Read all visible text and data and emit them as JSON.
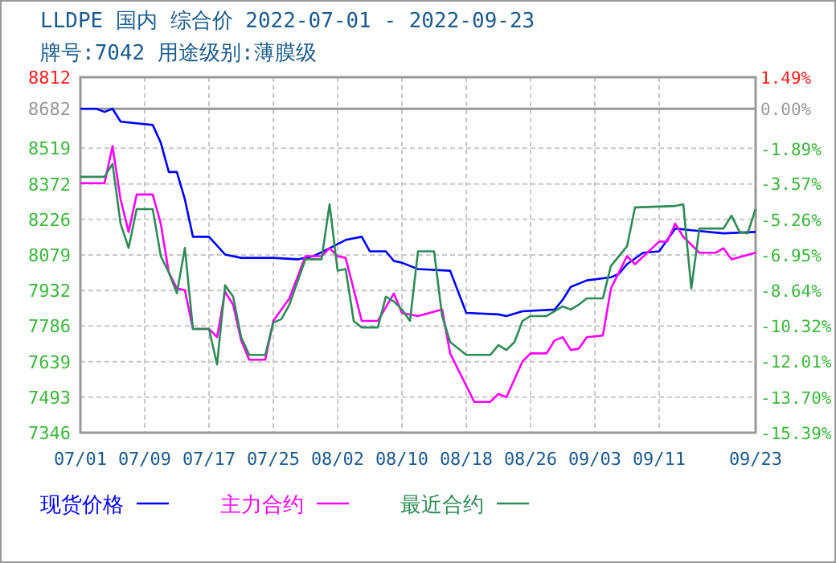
{
  "chart_data": {
    "type": "line",
    "title": "LLDPE 国内 综合价 2022-07-01 - 2022-09-23",
    "subtitle": "牌号:7042 用途级别:薄膜级",
    "xlim": [
      "2022-07-01",
      "2022-09-23"
    ],
    "xticks": [
      {
        "value": "2022-07-01",
        "label": "07/01"
      },
      {
        "value": "2022-07-09",
        "label": "07/09"
      },
      {
        "value": "2022-07-17",
        "label": "07/17"
      },
      {
        "value": "2022-07-25",
        "label": "07/25"
      },
      {
        "value": "2022-08-02",
        "label": "08/02"
      },
      {
        "value": "2022-08-10",
        "label": "08/10"
      },
      {
        "value": "2022-08-18",
        "label": "08/18"
      },
      {
        "value": "2022-08-26",
        "label": "08/26"
      },
      {
        "value": "2022-09-03",
        "label": "09/03"
      },
      {
        "value": "2022-09-11",
        "label": "09/11"
      },
      {
        "value": "2022-09-23",
        "label": "09/23"
      }
    ],
    "ylim": [
      7346,
      8812
    ],
    "yticks": [
      7346,
      7493,
      7639,
      7786,
      7932,
      8079,
      8226,
      8372,
      8519,
      8682,
      8812
    ],
    "y2lim": [
      -15.39,
      1.49
    ],
    "y2ticks": [
      {
        "value": -15.39,
        "label": "-15.39%"
      },
      {
        "value": -13.7,
        "label": "-13.70%"
      },
      {
        "value": -12.01,
        "label": "-12.01%"
      },
      {
        "value": -10.32,
        "label": "-10.32%"
      },
      {
        "value": -8.64,
        "label": "-8.64%"
      },
      {
        "value": -6.95,
        "label": "-6.95%"
      },
      {
        "value": -5.26,
        "label": "-5.26%"
      },
      {
        "value": -3.57,
        "label": "-3.57%"
      },
      {
        "value": -1.89,
        "label": "-1.89%"
      },
      {
        "value": 0,
        "label": "0.00%"
      },
      {
        "value": 1.49,
        "label": "1.49%"
      }
    ],
    "ref_lines": [
      {
        "axis": "y",
        "value": 8682,
        "color": "#999999"
      }
    ],
    "grid": true,
    "legend": "bottom",
    "line_style": "solid",
    "series": [
      {
        "name": "现货价格",
        "color": "#0000ff",
        "x": [
          "2022-07-01",
          "2022-07-03",
          "2022-07-04",
          "2022-07-05",
          "2022-07-06",
          "2022-07-10",
          "2022-07-11",
          "2022-07-12",
          "2022-07-13",
          "2022-07-14",
          "2022-07-15",
          "2022-07-17",
          "2022-07-19",
          "2022-07-21",
          "2022-07-25",
          "2022-07-28",
          "2022-07-30",
          "2022-08-01",
          "2022-08-03",
          "2022-08-05",
          "2022-08-06",
          "2022-08-08",
          "2022-08-09",
          "2022-08-10",
          "2022-08-12",
          "2022-08-16",
          "2022-08-18",
          "2022-08-22",
          "2022-08-23",
          "2022-08-25",
          "2022-08-29",
          "2022-08-30",
          "2022-08-31",
          "2022-09-02",
          "2022-09-05",
          "2022-09-06",
          "2022-09-07",
          "2022-09-09",
          "2022-09-11",
          "2022-09-13",
          "2022-09-15",
          "2022-09-19",
          "2022-09-23"
        ],
        "values": [
          8682,
          8682,
          8669,
          8682,
          8629,
          8615,
          8542,
          8421,
          8421,
          8308,
          8154,
          8154,
          8081,
          8067,
          8067,
          8061,
          8074,
          8107,
          8141,
          8154,
          8094,
          8094,
          8054,
          8047,
          8021,
          8014,
          7840,
          7834,
          7827,
          7847,
          7854,
          7894,
          7947,
          7974,
          7987,
          8001,
          8041,
          8088,
          8094,
          8188,
          8181,
          8168,
          8174
        ]
      },
      {
        "name": "主力合约",
        "color": "#ff00ff",
        "x": [
          "2022-07-01",
          "2022-07-04",
          "2022-07-05",
          "2022-07-06",
          "2022-07-07",
          "2022-07-08",
          "2022-07-10",
          "2022-07-11",
          "2022-07-12",
          "2022-07-13",
          "2022-07-14",
          "2022-07-15",
          "2022-07-17",
          "2022-07-18",
          "2022-07-19",
          "2022-07-20",
          "2022-07-21",
          "2022-07-22",
          "2022-07-24",
          "2022-07-25",
          "2022-07-27",
          "2022-07-29",
          "2022-07-31",
          "2022-08-01",
          "2022-08-02",
          "2022-08-03",
          "2022-08-05",
          "2022-08-07",
          "2022-08-09",
          "2022-08-10",
          "2022-08-12",
          "2022-08-15",
          "2022-08-16",
          "2022-08-19",
          "2022-08-21",
          "2022-08-22",
          "2022-08-23",
          "2022-08-25",
          "2022-08-26",
          "2022-08-28",
          "2022-08-29",
          "2022-08-30",
          "2022-08-31",
          "2022-09-01",
          "2022-09-02",
          "2022-09-04",
          "2022-09-05",
          "2022-09-06",
          "2022-09-07",
          "2022-09-08",
          "2022-09-11",
          "2022-09-12",
          "2022-09-13",
          "2022-09-14",
          "2022-09-16",
          "2022-09-18",
          "2022-09-19",
          "2022-09-20",
          "2022-09-23"
        ],
        "values": [
          8375,
          8375,
          8528,
          8308,
          8174,
          8328,
          8328,
          8208,
          8007,
          7941,
          7934,
          7774,
          7774,
          7740,
          7927,
          7874,
          7727,
          7647,
          7647,
          7807,
          7900,
          8074,
          8074,
          8107,
          8074,
          8067,
          7807,
          7807,
          7920,
          7840,
          7827,
          7854,
          7673,
          7473,
          7473,
          7506,
          7493,
          7640,
          7673,
          7673,
          7727,
          7740,
          7687,
          7693,
          7740,
          7747,
          7941,
          8007,
          8074,
          8041,
          8134,
          8134,
          8208,
          8154,
          8088,
          8088,
          8107,
          8061,
          8088
        ]
      },
      {
        "name": "最近合约",
        "color": "#2e8b57",
        "x": [
          "2022-07-01",
          "2022-07-04",
          "2022-07-05",
          "2022-07-06",
          "2022-07-07",
          "2022-07-08",
          "2022-07-10",
          "2022-07-11",
          "2022-07-12",
          "2022-07-13",
          "2022-07-14",
          "2022-07-15",
          "2022-07-17",
          "2022-07-18",
          "2022-07-19",
          "2022-07-20",
          "2022-07-21",
          "2022-07-22",
          "2022-07-24",
          "2022-07-25",
          "2022-07-26",
          "2022-07-27",
          "2022-07-29",
          "2022-07-31",
          "2022-08-01",
          "2022-08-02",
          "2022-08-03",
          "2022-08-04",
          "2022-08-05",
          "2022-08-07",
          "2022-08-08",
          "2022-08-09",
          "2022-08-10",
          "2022-08-11",
          "2022-08-12",
          "2022-08-14",
          "2022-08-15",
          "2022-08-16",
          "2022-08-18",
          "2022-08-21",
          "2022-08-22",
          "2022-08-23",
          "2022-08-24",
          "2022-08-25",
          "2022-08-26",
          "2022-08-28",
          "2022-08-30",
          "2022-08-31",
          "2022-09-01",
          "2022-09-02",
          "2022-09-04",
          "2022-09-05",
          "2022-09-07",
          "2022-09-08",
          "2022-09-13",
          "2022-09-14",
          "2022-09-15",
          "2022-09-16",
          "2022-09-19",
          "2022-09-20",
          "2022-09-21",
          "2022-09-22",
          "2022-09-23"
        ],
        "values": [
          8401,
          8401,
          8455,
          8208,
          8108,
          8268,
          8268,
          8074,
          8007,
          7921,
          8108,
          7774,
          7774,
          7627,
          7954,
          7907,
          7740,
          7667,
          7667,
          7800,
          7814,
          7874,
          8061,
          8061,
          8288,
          8014,
          8021,
          7807,
          7780,
          7780,
          7907,
          7887,
          7854,
          7807,
          8094,
          8094,
          7827,
          7720,
          7667,
          7667,
          7707,
          7687,
          7720,
          7807,
          7827,
          7827,
          7867,
          7854,
          7874,
          7900,
          7900,
          8034,
          8114,
          8275,
          8281,
          8288,
          7941,
          8188,
          8188,
          8241,
          8174,
          8168,
          8268
        ]
      }
    ]
  }
}
